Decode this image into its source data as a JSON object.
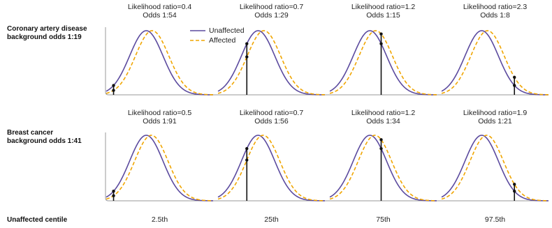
{
  "chart_data": {
    "type": "line",
    "x_axis_label": "Unaffected centile",
    "centiles": [
      "2.5th",
      "25th",
      "75th",
      "97.5th"
    ],
    "centile_values": [
      0.025,
      0.25,
      0.75,
      0.975
    ],
    "legend": {
      "position": "top-center",
      "entries": [
        {
          "name": "Unaffected",
          "color": "#5b4a9e",
          "style": "solid"
        },
        {
          "name": "Affected",
          "color": "#f0a500",
          "style": "dashed"
        }
      ]
    },
    "rows": [
      {
        "label_line1": "Coronary artery disease",
        "label_line2": "background odds 1:19",
        "affected_shift_sd": 0.35,
        "panels": [
          {
            "lr_text": "Likelihood ratio=0.4",
            "odds_text": "Odds 1:54"
          },
          {
            "lr_text": "Likelihood ratio=0.7",
            "odds_text": "Odds 1:29"
          },
          {
            "lr_text": "Likelihood ratio=1.2",
            "odds_text": "Odds 1:15"
          },
          {
            "lr_text": "Likelihood ratio=2.3",
            "odds_text": "Odds 1:8"
          }
        ]
      },
      {
        "label_line1": "Breast cancer",
        "label_line2": "background odds 1:41",
        "affected_shift_sd": 0.3,
        "panels": [
          {
            "lr_text": "Likelihood ratio=0.5",
            "odds_text": "Odds 1:91"
          },
          {
            "lr_text": "Likelihood ratio=0.7",
            "odds_text": "Odds 1:56"
          },
          {
            "lr_text": "Likelihood ratio=1.2",
            "odds_text": "Odds 1:34"
          },
          {
            "lr_text": "Likelihood ratio=1.9",
            "odds_text": "Odds 1:21"
          }
        ]
      }
    ],
    "colors": {
      "unaffected": "#5b4a9e",
      "affected": "#f0a500",
      "marker": "#111111",
      "axis": "#999999"
    },
    "grid": false
  }
}
